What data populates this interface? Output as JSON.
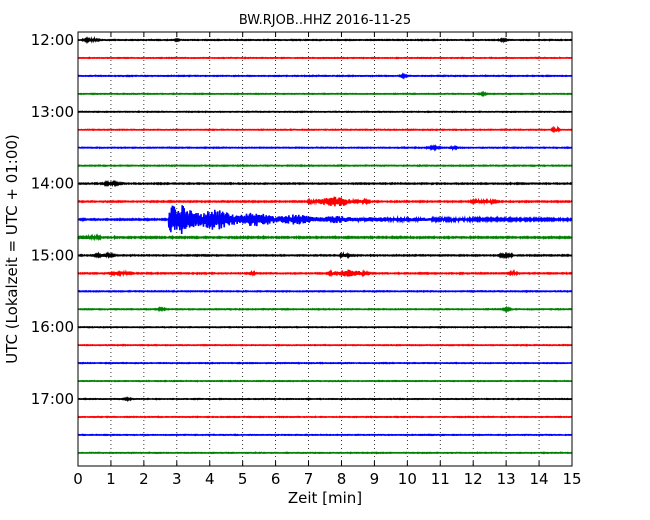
{
  "chart_data": {
    "type": "line",
    "title": "BW.RJOB..HHZ 2016-11-25",
    "xlabel": "Zeit  [min]",
    "ylabel": "UTC (Lokalzeit = UTC + 01:00)",
    "xlim": [
      0,
      15
    ],
    "x_ticks": [
      "0",
      "1",
      "2",
      "3",
      "4",
      "5",
      "6",
      "7",
      "8",
      "9",
      "10",
      "11",
      "12",
      "13",
      "14",
      "15"
    ],
    "y_ticks": [
      "12:00",
      "13:00",
      "14:00",
      "15:00",
      "16:00",
      "17:00"
    ],
    "grid": "vertical dotted",
    "trace_interval": "15 min",
    "colors": [
      "#000000",
      "#ff0000",
      "#0000ff",
      "#008000"
    ],
    "traces": [
      {
        "start": "12:00",
        "noise": 0.25,
        "events": [
          {
            "t": 0.4,
            "amp": 1.6,
            "dur": 0.3
          },
          {
            "t": 3.0,
            "amp": 0.8,
            "dur": 0.1
          },
          {
            "t": 12.9,
            "amp": 1.0,
            "dur": 0.2
          }
        ]
      },
      {
        "start": "12:15",
        "noise": 0.2,
        "events": []
      },
      {
        "start": "12:30",
        "noise": 0.25,
        "events": [
          {
            "t": 9.9,
            "amp": 0.8,
            "dur": 0.2
          }
        ]
      },
      {
        "start": "12:45",
        "noise": 0.2,
        "events": [
          {
            "t": 12.3,
            "amp": 0.8,
            "dur": 0.2
          }
        ]
      },
      {
        "start": "13:00",
        "noise": 0.2,
        "events": []
      },
      {
        "start": "13:15",
        "noise": 0.2,
        "events": [
          {
            "t": 14.5,
            "amp": 2.0,
            "dur": 0.15
          }
        ]
      },
      {
        "start": "13:30",
        "noise": 0.25,
        "events": [
          {
            "t": 10.8,
            "amp": 1.0,
            "dur": 0.3
          },
          {
            "t": 11.4,
            "amp": 1.5,
            "dur": 0.15
          }
        ]
      },
      {
        "start": "13:45",
        "noise": 0.25,
        "events": []
      },
      {
        "start": "14:00",
        "noise": 0.35,
        "events": [
          {
            "t": 1.0,
            "amp": 1.0,
            "dur": 0.4
          }
        ]
      },
      {
        "start": "14:15",
        "noise": 0.4,
        "events": [
          {
            "t": 7.4,
            "amp": 2.5,
            "dur": 0.5
          },
          {
            "t": 7.9,
            "amp": 6.0,
            "dur": 0.5
          },
          {
            "t": 8.6,
            "amp": 1.5,
            "dur": 0.3
          },
          {
            "t": 12.3,
            "amp": 1.5,
            "dur": 0.5
          }
        ]
      },
      {
        "start": "14:30",
        "noise": 0.5,
        "quake": {
          "t": 2.75,
          "amp": 12.0,
          "decay": 2.8
        }
      },
      {
        "start": "14:45",
        "noise": 0.5,
        "events": [
          {
            "t": 0.2,
            "amp": 2.0,
            "dur": 0.6
          }
        ]
      },
      {
        "start": "15:00",
        "noise": 0.35,
        "events": [
          {
            "t": 0.8,
            "amp": 1.5,
            "dur": 0.4
          },
          {
            "t": 8.1,
            "amp": 1.8,
            "dur": 0.2
          },
          {
            "t": 13.0,
            "amp": 1.0,
            "dur": 0.3
          }
        ]
      },
      {
        "start": "15:15",
        "noise": 0.35,
        "events": [
          {
            "t": 1.3,
            "amp": 1.5,
            "dur": 0.4
          },
          {
            "t": 5.3,
            "amp": 1.2,
            "dur": 0.1
          },
          {
            "t": 8.2,
            "amp": 3.5,
            "dur": 0.7
          },
          {
            "t": 13.2,
            "amp": 1.0,
            "dur": 0.2
          }
        ]
      },
      {
        "start": "15:30",
        "noise": 0.25,
        "events": []
      },
      {
        "start": "15:45",
        "noise": 0.25,
        "events": [
          {
            "t": 2.5,
            "amp": 0.8,
            "dur": 0.2
          },
          {
            "t": 13.0,
            "amp": 0.8,
            "dur": 0.2
          }
        ]
      },
      {
        "start": "16:00",
        "noise": 0.2,
        "events": []
      },
      {
        "start": "16:15",
        "noise": 0.2,
        "events": []
      },
      {
        "start": "16:30",
        "noise": 0.2,
        "events": []
      },
      {
        "start": "16:45",
        "noise": 0.2,
        "events": []
      },
      {
        "start": "17:00",
        "noise": 0.2,
        "events": [
          {
            "t": 1.5,
            "amp": 0.8,
            "dur": 0.2
          }
        ]
      },
      {
        "start": "17:15",
        "noise": 0.2,
        "events": []
      },
      {
        "start": "17:30",
        "noise": 0.2,
        "events": []
      },
      {
        "start": "17:45",
        "noise": 0.2,
        "events": []
      }
    ]
  }
}
